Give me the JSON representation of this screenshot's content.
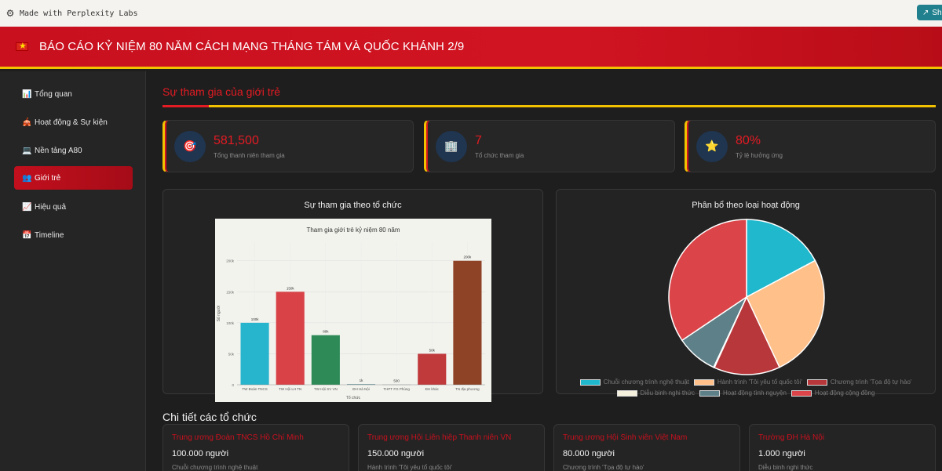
{
  "labs_bar": {
    "text": "Made with Perplexity Labs",
    "share_label": "Sh"
  },
  "header": {
    "title": "BÁO CÁO KỶ NIỆM 80 NĂM CÁCH MẠNG THÁNG TÁM VÀ QUỐC KHÁNH 2/9"
  },
  "sidebar": {
    "items": [
      {
        "icon": "📊",
        "label": "Tổng quan",
        "active": false
      },
      {
        "icon": "🎪",
        "label": "Hoạt động & Sự kiện",
        "active": false
      },
      {
        "icon": "💻",
        "label": "Nền tảng A80",
        "active": false
      },
      {
        "icon": "👥",
        "label": "Giới trẻ",
        "active": true
      },
      {
        "icon": "📈",
        "label": "Hiệu quả",
        "active": false
      },
      {
        "icon": "📅",
        "label": "Timeline",
        "active": false
      }
    ]
  },
  "main": {
    "section_title": "Sự tham gia của giới trẻ",
    "stats": [
      {
        "icon": "🎯",
        "value": "581,500",
        "label": "Tổng thanh niên tham gia"
      },
      {
        "icon": "🏢",
        "value": "7",
        "label": "Tổ chức tham gia"
      },
      {
        "icon": "⭐",
        "value": "80%",
        "label": "Tỷ lệ hưởng ứng"
      }
    ],
    "bar_panel_title": "Sự tham gia theo tổ chức",
    "pie_panel_title": "Phân bổ theo loại hoạt động",
    "details_title": "Chi tiết các tổ chức",
    "orgs": [
      {
        "name": "Trung ương Đoàn TNCS Hồ Chí Minh",
        "count": "100.000 người",
        "activity": "Chuỗi chương trình nghệ thuật"
      },
      {
        "name": "Trung ương Hội Liên hiệp Thanh niên VN",
        "count": "150.000 người",
        "activity": "Hành trình 'Tôi yêu tổ quốc tôi'"
      },
      {
        "name": "Trung ương Hội Sinh viên Việt Nam",
        "count": "80.000 người",
        "activity": "Chương trình 'Tọa độ tự hào'"
      },
      {
        "name": "Trường ĐH Hà Nội",
        "count": "1.000 người",
        "activity": "Diễu binh nghi thức"
      }
    ]
  },
  "chart_data": [
    {
      "type": "bar",
      "title": "Tham gia giới trẻ kỷ niệm 80 năm",
      "xlabel": "Tổ chức",
      "ylabel": "Số người",
      "categories": [
        "TW Đoàn TNCS",
        "TW Hội LH TN",
        "TW Hội SV VN",
        "ĐH Hà Nội",
        "THPT FG Phùng",
        "ĐH khác",
        "TN địa phương"
      ],
      "values": [
        100000,
        150000,
        80000,
        1000,
        500,
        50000,
        200000
      ],
      "data_labels": [
        "100k",
        "150k",
        "80k",
        "1k",
        "500",
        "50k",
        "200k"
      ],
      "colors": [
        "#26b5cc",
        "#d94348",
        "#2e8b57",
        "#5f8f96",
        "#a9b8bd",
        "#c0393b",
        "#8e4226"
      ],
      "ylim": [
        0,
        230000
      ],
      "yticks": [
        0,
        50000,
        100000,
        150000,
        200000
      ],
      "ytick_labels": [
        "0",
        "50k",
        "100k",
        "150k",
        "200k"
      ],
      "grid": true
    },
    {
      "type": "pie",
      "categories": [
        "Chuỗi chương trình nghệ thuật",
        "Hành trình 'Tôi yêu tổ quốc tôi'",
        "Chương trình 'Tọa độ tự hào'",
        "Diễu binh nghi thức",
        "Hoạt động tình nguyện",
        "Hoạt động cộng đồng"
      ],
      "values": [
        100000,
        150000,
        80000,
        1000,
        50000,
        200000
      ],
      "colors": [
        "#20b8cc",
        "#ffc08a",
        "#b8373a",
        "#f5f0dc",
        "#5e8189",
        "#db4549"
      ],
      "legend_position": "bottom"
    }
  ]
}
